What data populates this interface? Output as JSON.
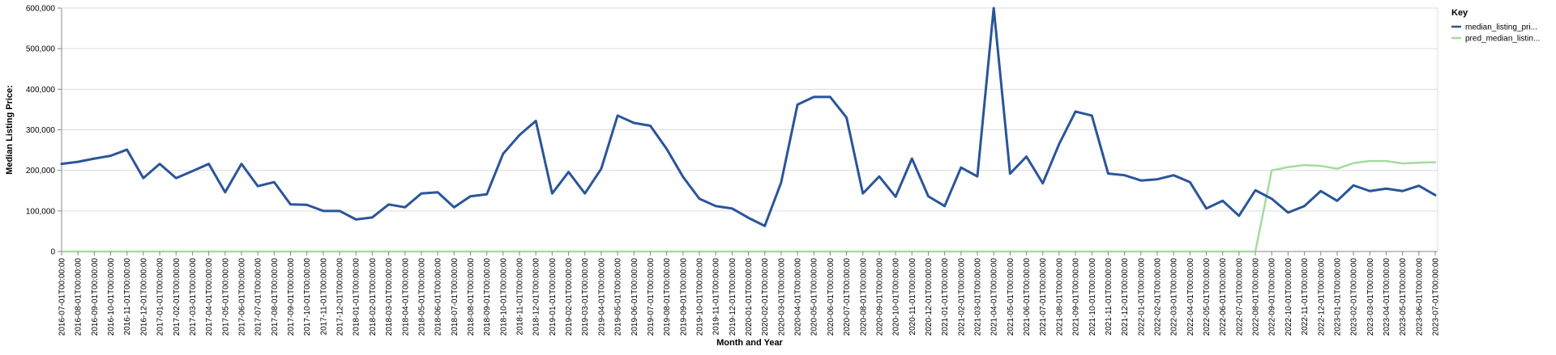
{
  "chart_data": {
    "type": "line",
    "title": "",
    "xlabel": "Month and Year",
    "ylabel": "Median Listing Price:",
    "ylim": [
      0,
      600000
    ],
    "y_ticks": [
      0,
      100000,
      200000,
      300000,
      400000,
      500000,
      600000
    ],
    "y_tick_labels": [
      "0",
      "100,000",
      "200,000",
      "300,000",
      "400,000",
      "500,000",
      "600,000"
    ],
    "grid": true,
    "legend": {
      "title": "Key",
      "position": "top-right"
    },
    "categories": [
      "2016-07-01T00:00:00",
      "2016-08-01T00:00:00",
      "2016-09-01T00:00:00",
      "2016-10-01T00:00:00",
      "2016-11-01T00:00:00",
      "2016-12-01T00:00:00",
      "2017-01-01T00:00:00",
      "2017-02-01T00:00:00",
      "2017-03-01T00:00:00",
      "2017-04-01T00:00:00",
      "2017-05-01T00:00:00",
      "2017-06-01T00:00:00",
      "2017-07-01T00:00:00",
      "2017-08-01T00:00:00",
      "2017-09-01T00:00:00",
      "2017-10-01T00:00:00",
      "2017-11-01T00:00:00",
      "2017-12-01T00:00:00",
      "2018-01-01T00:00:00",
      "2018-02-01T00:00:00",
      "2018-03-01T00:00:00",
      "2018-04-01T00:00:00",
      "2018-05-01T00:00:00",
      "2018-06-01T00:00:00",
      "2018-07-01T00:00:00",
      "2018-08-01T00:00:00",
      "2018-09-01T00:00:00",
      "2018-10-01T00:00:00",
      "2018-11-01T00:00:00",
      "2018-12-01T00:00:00",
      "2019-01-01T00:00:00",
      "2019-02-01T00:00:00",
      "2019-03-01T00:00:00",
      "2019-04-01T00:00:00",
      "2019-05-01T00:00:00",
      "2019-06-01T00:00:00",
      "2019-07-01T00:00:00",
      "2019-08-01T00:00:00",
      "2019-09-01T00:00:00",
      "2019-10-01T00:00:00",
      "2019-11-01T00:00:00",
      "2019-12-01T00:00:00",
      "2020-01-01T00:00:00",
      "2020-02-01T00:00:00",
      "2020-03-01T00:00:00",
      "2020-04-01T00:00:00",
      "2020-05-01T00:00:00",
      "2020-06-01T00:00:00",
      "2020-07-01T00:00:00",
      "2020-08-01T00:00:00",
      "2020-09-01T00:00:00",
      "2020-10-01T00:00:00",
      "2020-11-01T00:00:00",
      "2020-12-01T00:00:00",
      "2021-01-01T00:00:00",
      "2021-02-01T00:00:00",
      "2021-03-01T00:00:00",
      "2021-04-01T00:00:00",
      "2021-05-01T00:00:00",
      "2021-06-01T00:00:00",
      "2021-07-01T00:00:00",
      "2021-08-01T00:00:00",
      "2021-09-01T00:00:00",
      "2021-10-01T00:00:00",
      "2021-11-01T00:00:00",
      "2021-12-01T00:00:00",
      "2022-01-01T00:00:00",
      "2022-02-01T00:00:00",
      "2022-03-01T00:00:00",
      "2022-04-01T00:00:00",
      "2022-05-01T00:00:00",
      "2022-06-01T00:00:00",
      "2022-07-01T00:00:00",
      "2022-08-01T00:00:00",
      "2022-09-01T00:00:00",
      "2022-10-01T00:00:00",
      "2022-11-01T00:00:00",
      "2022-12-01T00:00:00",
      "2023-01-01T00:00:00",
      "2023-02-01T00:00:00",
      "2023-03-01T00:00:00",
      "2023-04-01T00:00:00",
      "2023-05-01T00:00:00",
      "2023-06-01T00:00:00",
      "2023-07-01T00:00:00"
    ],
    "series": [
      {
        "name": "median_listing_pri...",
        "color": "#2a5599",
        "values": [
          216000,
          221000,
          229000,
          236000,
          251000,
          181000,
          216000,
          181000,
          198000,
          216000,
          146000,
          216000,
          161000,
          171000,
          116000,
          115000,
          100000,
          100000,
          79000,
          84000,
          116000,
          109000,
          143000,
          146000,
          109000,
          136000,
          141000,
          241000,
          287000,
          322000,
          143000,
          196000,
          143000,
          204000,
          335000,
          317000,
          310000,
          253000,
          184000,
          130000,
          112000,
          106000,
          83000,
          63000,
          170000,
          362000,
          381000,
          381000,
          330000,
          143000,
          185000,
          135000,
          229000,
          136000,
          112000,
          207000,
          185000,
          600000,
          192000,
          234000,
          168000,
          265000,
          345000,
          335000,
          192000,
          188000,
          175000,
          178000,
          188000,
          171000,
          106000,
          125000,
          88000,
          151000,
          130000,
          96000,
          112000,
          149000,
          125000,
          163000,
          149000,
          155000,
          149000,
          162000,
          139000
        ]
      },
      {
        "name": "pred_median_listin...",
        "color": "#a4dca0",
        "values": [
          0,
          0,
          0,
          0,
          0,
          0,
          0,
          0,
          0,
          0,
          0,
          0,
          0,
          0,
          0,
          0,
          0,
          0,
          0,
          0,
          0,
          0,
          0,
          0,
          0,
          0,
          0,
          0,
          0,
          0,
          0,
          0,
          0,
          0,
          0,
          0,
          0,
          0,
          0,
          0,
          0,
          0,
          0,
          0,
          0,
          0,
          0,
          0,
          0,
          0,
          0,
          0,
          0,
          0,
          0,
          0,
          0,
          0,
          0,
          0,
          0,
          0,
          0,
          0,
          0,
          0,
          0,
          0,
          0,
          0,
          0,
          0,
          0,
          0,
          200000,
          208000,
          213000,
          211000,
          204000,
          218000,
          223000,
          223000,
          217000,
          219000,
          220000
        ]
      }
    ]
  }
}
